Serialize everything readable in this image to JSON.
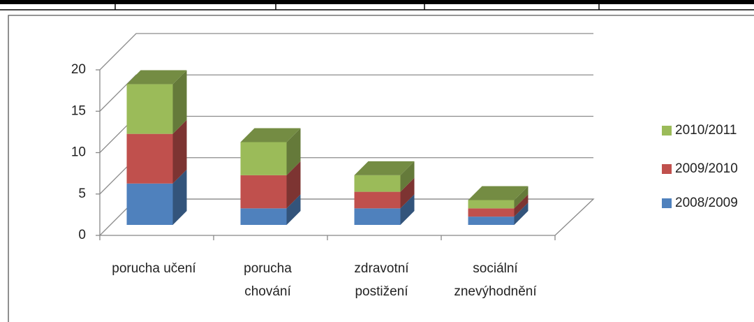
{
  "chart_data": {
    "type": "bar3d-stacked",
    "categories": [
      [
        "porucha  učení"
      ],
      [
        "porucha",
        "chování"
      ],
      [
        "zdravotní",
        "postižení"
      ],
      [
        "sociální",
        "znevýhodnění"
      ]
    ],
    "series": [
      {
        "name": "2008/2009",
        "color": "#4f81bd",
        "values": [
          5,
          2,
          2,
          1
        ]
      },
      {
        "name": "2009/2010",
        "color": "#c0504d",
        "values": [
          6,
          4,
          2,
          1
        ]
      },
      {
        "name": "2010/2011",
        "color": "#9bbb59",
        "values": [
          6,
          4,
          2,
          1
        ]
      }
    ],
    "ylim": [
      0,
      20
    ],
    "yticks": [
      0,
      5,
      10,
      15,
      20
    ],
    "grid": true,
    "legend": "right"
  }
}
